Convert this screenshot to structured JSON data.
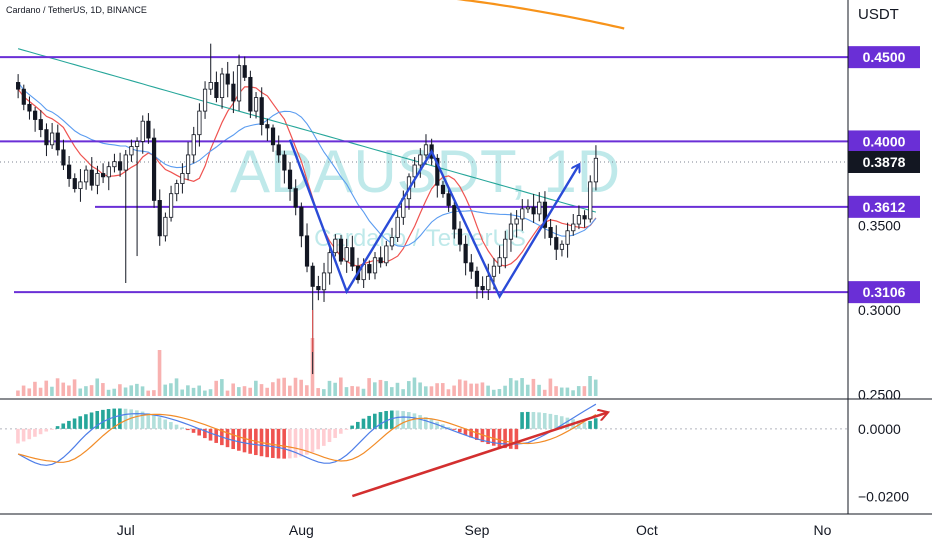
{
  "header": {
    "symbol_line": "Cardano / TetherUS, 1D, BINANCE",
    "currency": "USDT"
  },
  "watermark": {
    "ticker": "ADAUSDT, 1D",
    "name": "Cardano / TetherUS"
  },
  "colors": {
    "bull": "#26a69a",
    "bear": "#ef5350",
    "level_line": "#6a2fd6",
    "level_label_bg": "#6a2fd6",
    "price_label_bg": "#131722",
    "pattern": "#2a4bd7",
    "ma_orange": "#f7931a",
    "ma_red": "#ef5350",
    "ma_blue": "#5b9cf0",
    "ma_teal": "#26a69a",
    "divergence_arrow": "#d32f2f",
    "macd_line": "#4e7ee8",
    "signal_line": "#f28c28"
  },
  "price_axis": {
    "ticks": [
      "0.3000",
      "0.3500",
      "0.2500"
    ],
    "ymin": 0.2478,
    "ymax": 0.4839
  },
  "levels": [
    {
      "value": 0.45,
      "label": "0.4500"
    },
    {
      "value": 0.4,
      "label": "0.4000"
    },
    {
      "value": 0.3612,
      "label": "0.3612"
    },
    {
      "value": 0.3106,
      "label": "0.3106"
    }
  ],
  "last_price": {
    "value": 0.3878,
    "label": "0.3878"
  },
  "macd_axis": {
    "ticks": [
      {
        "value": 0.0,
        "label": "0.0000"
      },
      {
        "value": -0.02,
        "label": "−0.0200"
      }
    ],
    "ymin": -0.0245,
    "ymax": 0.0085
  },
  "time_axis": {
    "labels": [
      {
        "day": 19,
        "label": "Jul"
      },
      {
        "day": 50,
        "label": "Aug"
      },
      {
        "day": 81,
        "label": "Sep"
      },
      {
        "day": 111,
        "label": "Oct"
      },
      {
        "day": 142,
        "label": "No"
      }
    ],
    "day_range": [
      -3.2,
      146.5
    ]
  },
  "chart_data": {
    "type": "candlestick",
    "symbol": "ADAUSDT",
    "timeframe": "1D",
    "exchange": "BINANCE",
    "day_index_note": "",
    "closes": [
      0.431,
      0.422,
      0.418,
      0.413,
      0.407,
      0.398,
      0.405,
      0.395,
      0.386,
      0.378,
      0.372,
      0.376,
      0.383,
      0.374,
      0.381,
      0.379,
      0.385,
      0.388,
      0.383,
      0.392,
      0.397,
      0.4,
      0.412,
      0.402,
      0.365,
      0.344,
      0.355,
      0.369,
      0.375,
      0.381,
      0.392,
      0.404,
      0.418,
      0.431,
      0.435,
      0.426,
      0.44,
      0.434,
      0.424,
      0.445,
      0.438,
      0.418,
      0.426,
      0.41,
      0.408,
      0.398,
      0.392,
      0.383,
      0.372,
      0.361,
      0.344,
      0.326,
      0.314,
      0.312,
      0.322,
      0.334,
      0.342,
      0.329,
      0.337,
      0.326,
      0.318,
      0.327,
      0.322,
      0.331,
      0.328,
      0.338,
      0.343,
      0.355,
      0.366,
      0.379,
      0.386,
      0.392,
      0.398,
      0.39,
      0.374,
      0.369,
      0.362,
      0.348,
      0.339,
      0.328,
      0.323,
      0.314,
      0.312,
      0.32,
      0.326,
      0.331,
      0.342,
      0.351,
      0.354,
      0.36,
      0.361,
      0.357,
      0.364,
      0.349,
      0.343,
      0.336,
      0.339,
      0.347,
      0.351,
      0.356,
      0.354,
      0.376,
      0.39
    ],
    "pattern_points": [
      {
        "day": 48,
        "price": 0.401
      },
      {
        "day": 58,
        "price": 0.311
      },
      {
        "day": 73,
        "price": 0.394
      },
      {
        "day": 85,
        "price": 0.308
      },
      {
        "day": 99,
        "price": 0.386
      }
    ],
    "macd_divergence": [
      {
        "day": 59,
        "value": -0.0198
      },
      {
        "day": 104,
        "value": 0.0048
      }
    ],
    "ylabel": ""
  }
}
